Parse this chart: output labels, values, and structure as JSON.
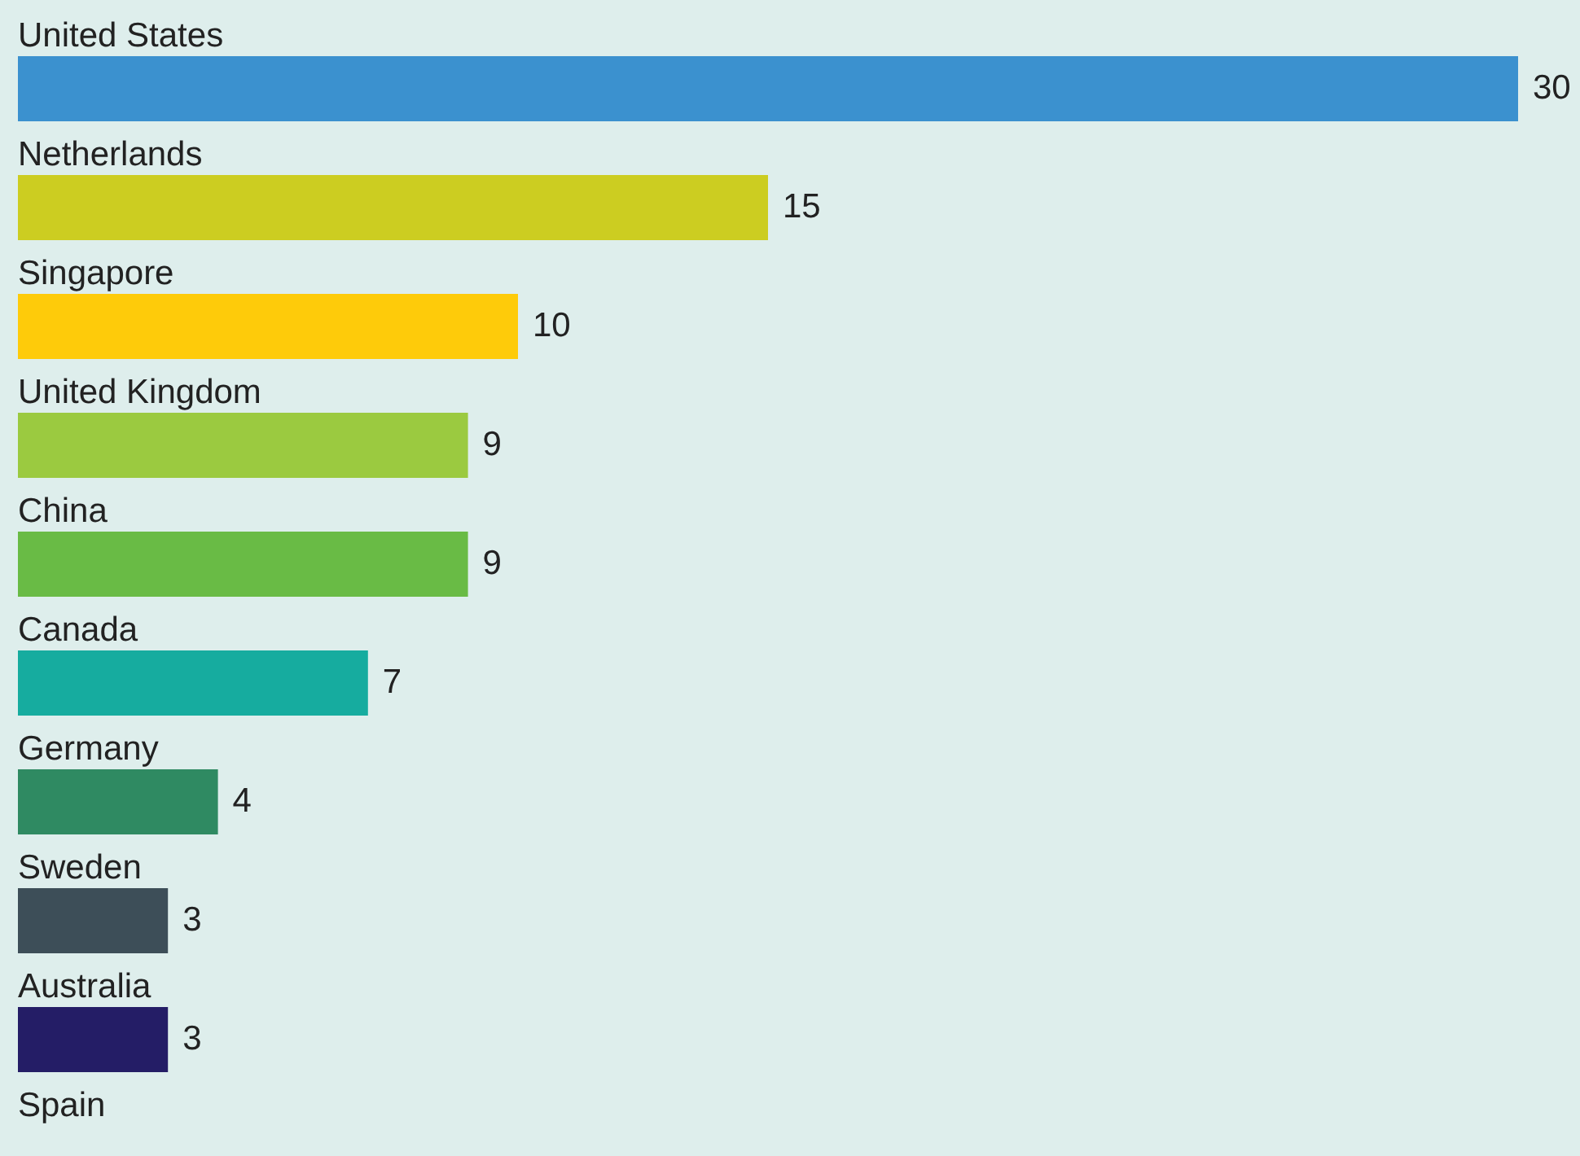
{
  "chart_data": {
    "type": "bar",
    "orientation": "horizontal",
    "categories": [
      "United States",
      "Netherlands",
      "Singapore",
      "United Kingdom",
      "China",
      "Canada",
      "Germany",
      "Sweden",
      "Australia",
      "Spain"
    ],
    "values": [
      30,
      15,
      10,
      9,
      9,
      7,
      4,
      3,
      3,
      null
    ],
    "colors": [
      "#3b91cf",
      "#cccd21",
      "#fecb0a",
      "#9bca40",
      "#69bb45",
      "#16ac9f",
      "#2f8a62",
      "#3d4e58",
      "#241d66",
      "#3b91cf"
    ],
    "data_labels": true
  }
}
